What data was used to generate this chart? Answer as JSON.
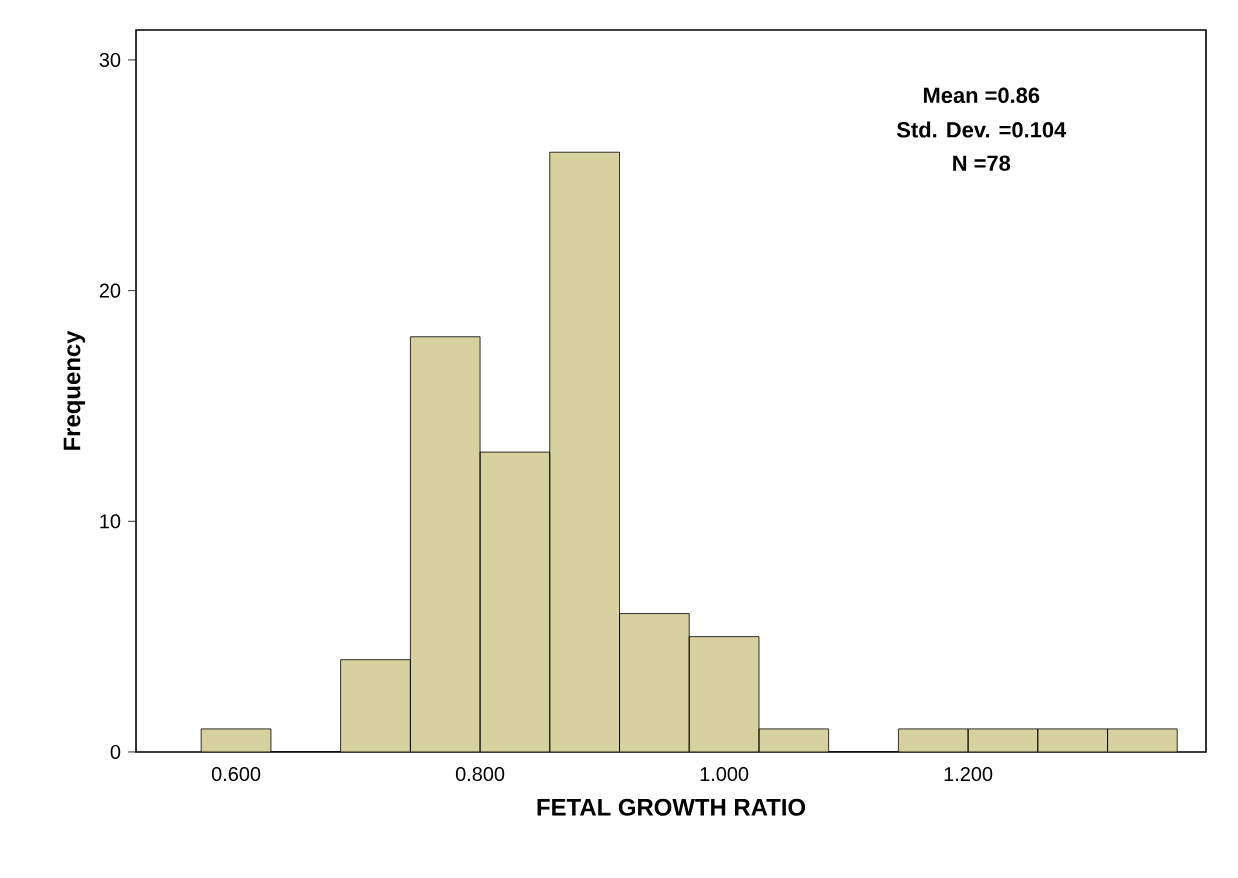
{
  "chart_data": {
    "type": "histogram",
    "xlabel": "FETAL GROWTH RATIO",
    "ylabel": "Frequency",
    "bins": [
      0.5714,
      0.6286,
      0.6857,
      0.7429,
      0.8,
      0.8571,
      0.9143,
      0.9714,
      1.0286,
      1.0857,
      1.1429,
      1.2,
      1.2571,
      1.3143,
      1.3714
    ],
    "values": [
      1,
      0,
      4,
      18,
      13,
      26,
      6,
      5,
      1,
      0,
      1,
      1,
      1,
      1
    ],
    "color": "#d6d19f",
    "xlim": [
      0.518,
      1.395
    ],
    "ylim": [
      0,
      31.3
    ],
    "xticks": [
      {
        "value": 0.6,
        "label": "0.600"
      },
      {
        "value": 0.8,
        "label": "0.800"
      },
      {
        "value": 1.0,
        "label": "1.000"
      },
      {
        "value": 1.2,
        "label": "1.200"
      }
    ],
    "yticks": [
      0,
      10,
      20,
      30
    ],
    "annotations": [
      "Mean =0.86",
      "Std. Dev. =0.104",
      "N =78"
    ],
    "grid": false
  }
}
